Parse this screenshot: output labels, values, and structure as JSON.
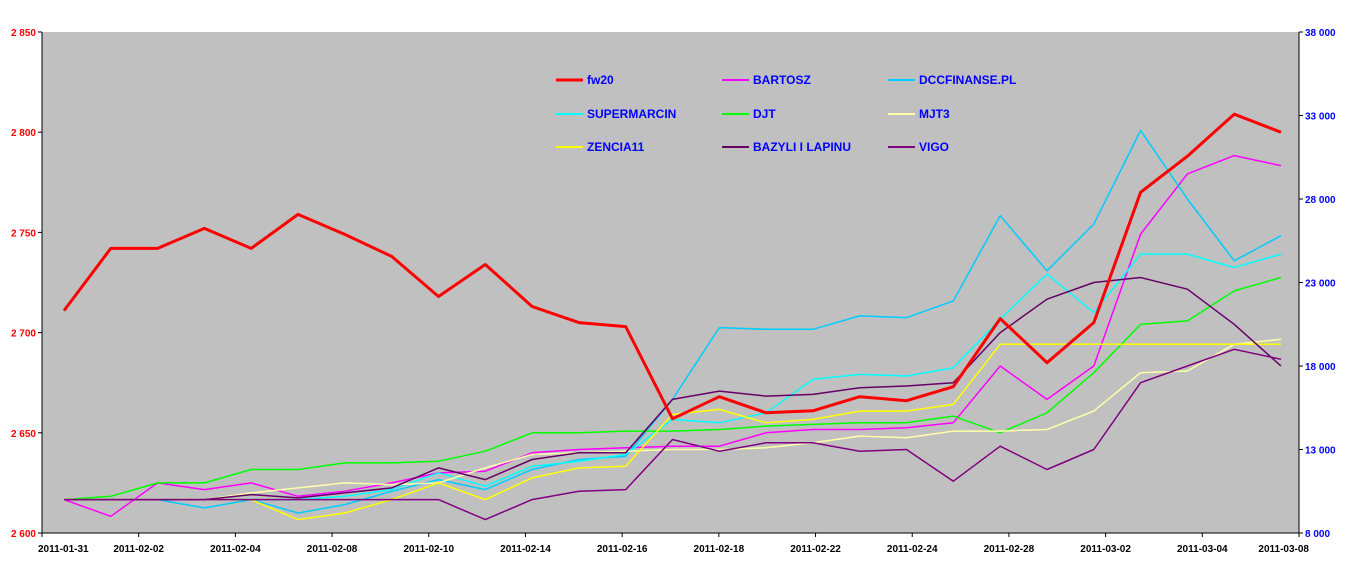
{
  "chart_data": {
    "type": "line",
    "title": "",
    "xlabel": "",
    "ylabel_left": "",
    "ylabel_right": "",
    "x": [
      "2011-01-31",
      "2011-02-01",
      "2011-02-02",
      "2011-02-03",
      "2011-02-04",
      "2011-02-07",
      "2011-02-08",
      "2011-02-09",
      "2011-02-10",
      "2011-02-11",
      "2011-02-14",
      "2011-02-15",
      "2011-02-16",
      "2011-02-17",
      "2011-02-18",
      "2011-02-21",
      "2011-02-22",
      "2011-02-23",
      "2011-02-24",
      "2011-02-25",
      "2011-02-28",
      "2011-03-01",
      "2011-03-02",
      "2011-03-03",
      "2011-03-04",
      "2011-03-07",
      "2011-03-08"
    ],
    "x_tick_labels": [
      "2011-01-31",
      "2011-02-02",
      "2011-02-04",
      "2011-02-08",
      "2011-02-10",
      "2011-02-14",
      "2011-02-16",
      "2011-02-18",
      "2011-02-22",
      "2011-02-24",
      "2011-02-28",
      "2011-03-02",
      "2011-03-04",
      "2011-03-08"
    ],
    "y_left": {
      "min": 2600,
      "max": 2850,
      "ticks": [
        "2 600",
        "2 650",
        "2 700",
        "2 750",
        "2 800",
        "2 850"
      ],
      "color": "#ff0000"
    },
    "y_right": {
      "min": 8000,
      "max": 38000,
      "ticks": [
        "8 000",
        "13 000",
        "18 000",
        "23 000",
        "28 000",
        "33 000",
        "38 000"
      ],
      "color": "#0000ff"
    },
    "grid": false,
    "plot_background": "#c0c0c0",
    "legend_position": "top-center",
    "series": [
      {
        "name": "fw20",
        "axis": "left",
        "color": "#ff0000",
        "width": 3,
        "values": [
          2711,
          2742,
          2742,
          2752,
          2742,
          2759,
          2749,
          2738,
          2718,
          2734,
          2713,
          2705,
          2703,
          2657,
          2668,
          2660,
          2661,
          2668,
          2666,
          2673,
          2707,
          2685,
          2705,
          2770,
          2788,
          2809,
          2800
        ]
      },
      {
        "name": "BARTOSZ",
        "axis": "right",
        "color": "#ff00ff",
        "width": 1.5,
        "values": [
          10000,
          9000,
          11000,
          10600,
          11000,
          10200,
          10500,
          11000,
          11600,
          11700,
          12800,
          13000,
          13100,
          13200,
          13200,
          14000,
          14200,
          14200,
          14300,
          14600,
          18000,
          16000,
          18000,
          25900,
          29500,
          30600,
          30000
        ]
      },
      {
        "name": "DCCFINANSE.PL",
        "axis": "right",
        "color": "#00ccff",
        "width": 1.5,
        "values": [
          10000,
          10000,
          10000,
          9500,
          10000,
          9200,
          9700,
          10500,
          11200,
          10600,
          11800,
          12400,
          12600,
          16000,
          20300,
          20200,
          20200,
          21000,
          20900,
          21900,
          27000,
          23700,
          26500,
          32100,
          28000,
          24300,
          25800
        ]
      },
      {
        "name": "SUPERMARCIN",
        "axis": "right",
        "color": "#00ffff",
        "width": 1.5,
        "values": [
          10000,
          10000,
          10000,
          10000,
          10000,
          10000,
          10200,
          10600,
          11600,
          10800,
          12000,
          12300,
          12700,
          14800,
          14600,
          15200,
          17200,
          17500,
          17400,
          17900,
          20800,
          23500,
          21200,
          24700,
          24700,
          23900,
          24700
        ]
      },
      {
        "name": "DJT",
        "axis": "right",
        "color": "#00ff00",
        "width": 1.5,
        "values": [
          10000,
          10200,
          11000,
          11000,
          11800,
          11800,
          12200,
          12200,
          12300,
          12900,
          14000,
          14000,
          14100,
          14100,
          14200,
          14400,
          14500,
          14600,
          14600,
          15000,
          14000,
          15200,
          17600,
          20500,
          20700,
          22500,
          23300
        ]
      },
      {
        "name": "MJT3",
        "axis": "right",
        "color": "#ffffaa",
        "width": 1.5,
        "values": [
          10000,
          10000,
          10000,
          10000,
          10400,
          10700,
          11000,
          10900,
          11000,
          11900,
          12700,
          12800,
          12900,
          13000,
          13000,
          13100,
          13400,
          13800,
          13700,
          14100,
          14100,
          14200,
          15300,
          17600,
          17700,
          19300,
          19600
        ]
      },
      {
        "name": "ZENCIA11",
        "axis": "right",
        "color": "#ffff00",
        "width": 1.5,
        "values": [
          10000,
          10000,
          10000,
          10000,
          10000,
          8800,
          9200,
          10000,
          11000,
          10000,
          11300,
          11900,
          12000,
          15100,
          15400,
          14600,
          14800,
          15300,
          15300,
          15700,
          19300,
          19300,
          19300,
          19300,
          19300,
          19300,
          19300
        ]
      },
      {
        "name": "BAZYLI I LAPINU",
        "axis": "right",
        "color": "#660066",
        "width": 1.5,
        "values": [
          10000,
          10000,
          10000,
          10000,
          10300,
          10100,
          10400,
          10700,
          11900,
          11200,
          12400,
          12800,
          12800,
          16000,
          16500,
          16200,
          16300,
          16700,
          16800,
          17000,
          20000,
          22000,
          23000,
          23300,
          22600,
          20500,
          18000
        ]
      },
      {
        "name": "VIGO",
        "axis": "right",
        "color": "#800080",
        "width": 1.5,
        "values": [
          10000,
          10000,
          10000,
          10000,
          10000,
          10000,
          10000,
          10000,
          10000,
          8800,
          10000,
          10500,
          10600,
          13600,
          12900,
          13400,
          13400,
          12900,
          13000,
          11100,
          13200,
          11800,
          13000,
          17000,
          18000,
          19000,
          18400
        ]
      }
    ]
  }
}
